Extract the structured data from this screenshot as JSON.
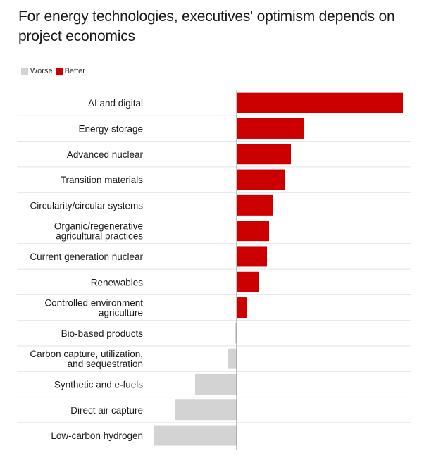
{
  "title": "For energy technologies, executives' optimism depends on project economics",
  "legend": [
    {
      "label": "Worse",
      "color": "#d3d3d3"
    },
    {
      "label": "Better",
      "color": "#cc0000"
    }
  ],
  "chart_data": {
    "type": "bar",
    "orientation": "horizontal",
    "title": "For energy technologies, executives' optimism depends on project economics",
    "categories": [
      [
        "AI and digital"
      ],
      [
        "Energy storage"
      ],
      [
        "Advanced nuclear"
      ],
      [
        "Transition materials"
      ],
      [
        "Circularity/circular systems"
      ],
      [
        "Organic/regenerative",
        "agricultural practices"
      ],
      [
        "Current generation nuclear"
      ],
      [
        "Renewables"
      ],
      [
        "Controlled environment",
        "agriculture"
      ],
      [
        "Bio-based products"
      ],
      [
        "Carbon capture, utilization,",
        "and sequestration"
      ],
      [
        "Synthetic and e-fuels"
      ],
      [
        "Direct air capture"
      ],
      [
        "Low-carbon hydrogen"
      ]
    ],
    "values": [
      236,
      96,
      77,
      68,
      52,
      46,
      43,
      31,
      15,
      -3,
      -13,
      -59,
      -87,
      -118
    ],
    "positive_color": "#cc0000",
    "negative_color": "#d3d3d3",
    "legend_position": "top-left",
    "grid": false
  }
}
